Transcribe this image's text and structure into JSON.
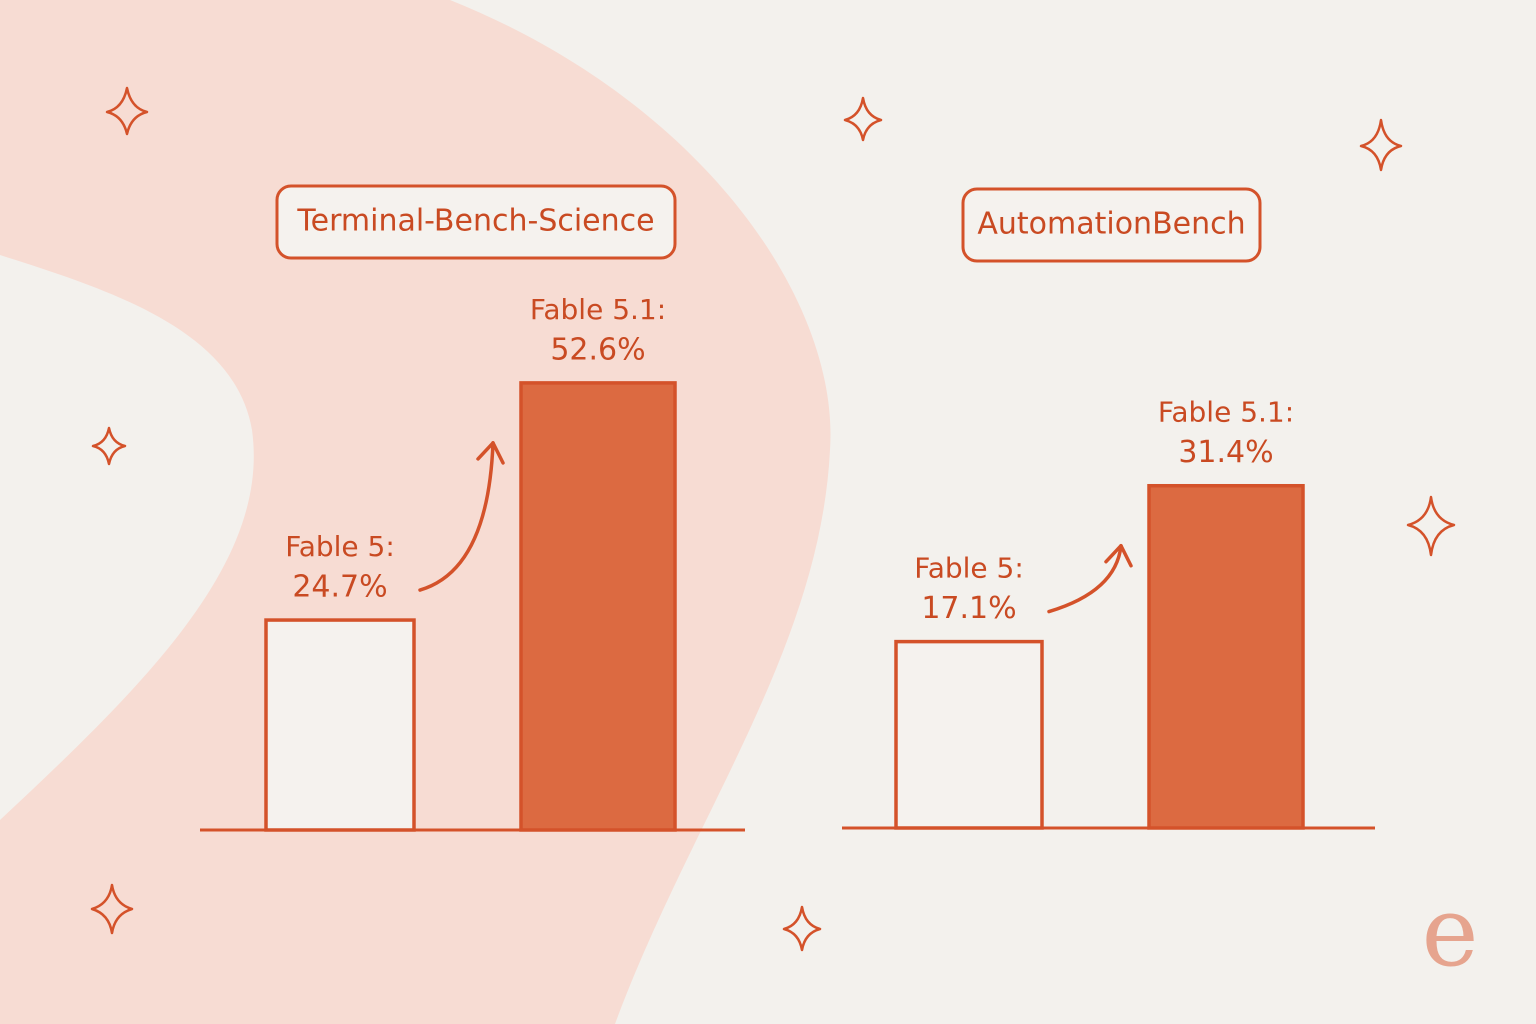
{
  "chart_data": [
    {
      "type": "bar",
      "title": "Terminal-Bench-Science",
      "categories": [
        "Fable 5:",
        "Fable 5.1:"
      ],
      "values": [
        24.7,
        52.6
      ],
      "value_labels": [
        "24.7%",
        "52.6%"
      ],
      "colors": [
        "#f5f2ee",
        "#dc6a41"
      ]
    },
    {
      "type": "bar",
      "title": "AutomationBench",
      "categories": [
        "Fable 5:",
        "Fable 5.1:"
      ],
      "values": [
        17.1,
        31.4
      ],
      "value_labels": [
        "17.1%",
        "31.4%"
      ],
      "colors": [
        "#f5f2ee",
        "#dc6a41"
      ]
    }
  ],
  "logo": "e"
}
